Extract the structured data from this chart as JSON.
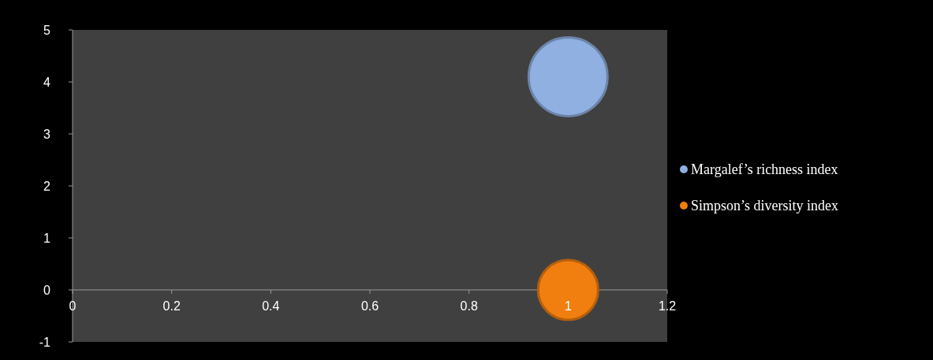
{
  "chart_data": {
    "type": "bubble",
    "series": [
      {
        "name": "Margalef’s richness index",
        "color": "#8fb0e0",
        "x": [
          1
        ],
        "values": [
          4.1
        ],
        "sizes": [
          1
        ]
      },
      {
        "name": "Simpson’s diversity index",
        "color": "#f07f10",
        "x": [
          1
        ],
        "values": [
          0
        ],
        "sizes": [
          0.58
        ]
      }
    ],
    "xlim": [
      0,
      1.2
    ],
    "xticks": [
      0,
      0.2,
      0.4,
      0.6,
      0.8,
      1,
      1.2
    ],
    "ylim": [
      -1,
      5
    ],
    "yticks": [
      -1,
      0,
      1,
      2,
      3,
      4,
      5
    ],
    "grid": false,
    "legend": "right"
  }
}
